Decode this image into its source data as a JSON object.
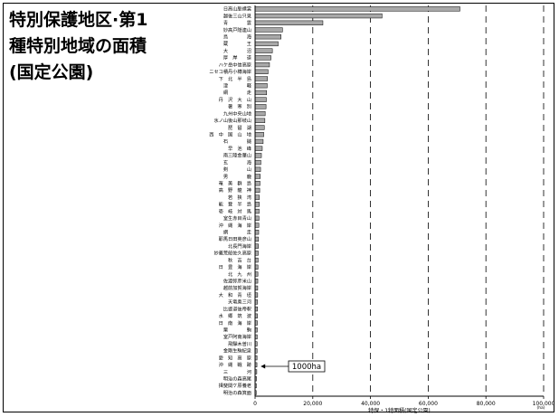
{
  "title": "特別保護地区·第1\n種特別地域の面積\n(国定公園)",
  "chart_data": {
    "type": "bar",
    "orientation": "horizontal",
    "title": "特別保護地区·第1種特別地域の面積(国定公園)",
    "xlabel": "特保・1特面積(国定公園)",
    "xunit": "(ha)",
    "xlim": [
      0,
      100000
    ],
    "xticks": [
      0,
      20000,
      40000,
      60000,
      80000,
      100000
    ],
    "xtick_labels": [
      "0",
      "20,000",
      "40,000",
      "60,000",
      "80,000",
      "100,000"
    ],
    "grid": "vertical-dashed",
    "bar_color": "#a8a8a8",
    "categories": [
      "日高山脈襟裳",
      "越後三山只見",
      "青　　　　雲",
      "妙高戸隠連山",
      "鳥　　　　海",
      "蔵　　　　王",
      "大　　　　沼",
      "厚　岸　　道",
      "ハケ岳中信高原",
      "ニセコ積丹小樽海岸",
      "下　北　半　島",
      "津　　　　軽",
      "網　　　　走",
      "丹　沢　大　山",
      "暑　寒　別",
      "九州中央山地",
      "氷ノ山後山那岐山",
      "琵　琶　湖",
      "西　中　国　山　地",
      "石　　　　鎚",
      "早　池　峰",
      "南三陸金華山",
      "玄　　　　海",
      "剣　　　　山",
      "男　　　　鹿",
      "奄　美　群　島",
      "高　野　龍　神",
      "若　狭　湾",
      "能　登　半　島",
      "壱　岐　対　馬",
      "室生赤目青山",
      "沖　縄　海　岸",
      "網　　　　走",
      "耶馬日田英彦山",
      "北長門海岸",
      "妙義荒船佐久高原",
      "秋　吉　台",
      "日　豊　海　岸",
      "北　九　州",
      "佐渡弥彦米山",
      "越前加賀海岸",
      "大　和　青　垣",
      "天竜奥三河",
      "比婆道後帝釈",
      "水　郷　筑　波",
      "日　南　海　岸",
      "栗　　　　駒",
      "室戸阿南海岸",
      "飛驒木曽川",
      "金剛生駒紀泉",
      "愛　知　高　原",
      "沖　縄　戦　跡",
      "三　　　　河",
      "明治の森高尾",
      "揖斐関ケ原養老",
      "明治の森箕面"
    ],
    "values": [
      71000,
      44000,
      23500,
      9500,
      9000,
      8000,
      6000,
      5500,
      5000,
      4500,
      4300,
      4200,
      4000,
      3900,
      3800,
      3500,
      3400,
      3200,
      3000,
      2800,
      2500,
      2200,
      2000,
      1900,
      1800,
      1700,
      1600,
      1500,
      1450,
      1400,
      1350,
      1300,
      1250,
      1200,
      1150,
      1100,
      1050,
      1000,
      980,
      950,
      920,
      900,
      880,
      850,
      820,
      800,
      780,
      750,
      720,
      700,
      680,
      650,
      600,
      500,
      450,
      400
    ],
    "annotations": [
      {
        "text": "1000ha",
        "x": 1000
      }
    ]
  }
}
